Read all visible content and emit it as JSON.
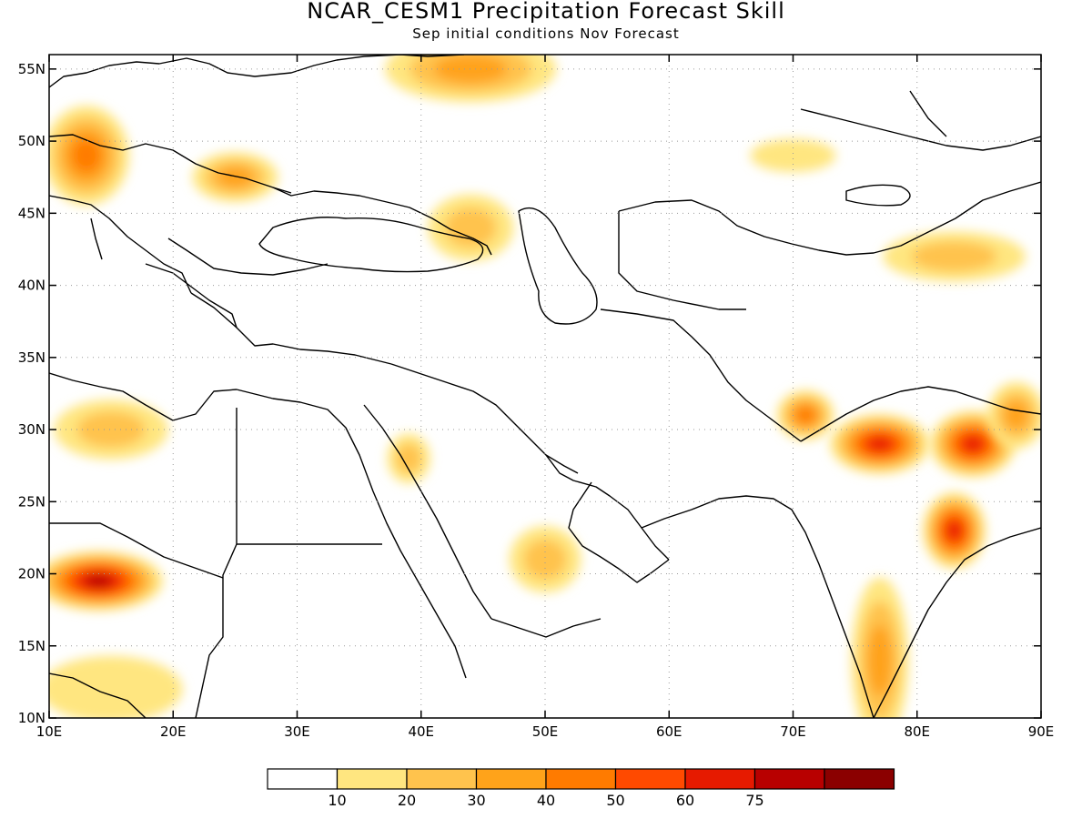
{
  "title": "NCAR_CESM1 Precipitation Forecast Skill",
  "subtitle": "Sep initial conditions   Nov Forecast",
  "axes": {
    "x_ticks": [
      {
        "value": 10,
        "label": "10E"
      },
      {
        "value": 20,
        "label": "20E"
      },
      {
        "value": 30,
        "label": "30E"
      },
      {
        "value": 40,
        "label": "40E"
      },
      {
        "value": 50,
        "label": "50E"
      },
      {
        "value": 60,
        "label": "60E"
      },
      {
        "value": 70,
        "label": "70E"
      },
      {
        "value": 80,
        "label": "80E"
      },
      {
        "value": 90,
        "label": "90E"
      }
    ],
    "y_ticks": [
      {
        "value": 10,
        "label": "10N"
      },
      {
        "value": 15,
        "label": "15N"
      },
      {
        "value": 20,
        "label": "20N"
      },
      {
        "value": 25,
        "label": "25N"
      },
      {
        "value": 30,
        "label": "30N"
      },
      {
        "value": 35,
        "label": "35N"
      },
      {
        "value": 40,
        "label": "40N"
      },
      {
        "value": 45,
        "label": "45N"
      },
      {
        "value": 50,
        "label": "50N"
      },
      {
        "value": 55,
        "label": "55N"
      }
    ],
    "lon_range": [
      10,
      90
    ],
    "lat_range": [
      10,
      56
    ],
    "grid": "dotted"
  },
  "colorbar": {
    "colors": [
      "#ffffff",
      "#ffe680",
      "#ffc34d",
      "#ffa31a",
      "#ff7b00",
      "#ff4a00",
      "#e61a00",
      "#b80000",
      "#8b0000"
    ],
    "labels": [
      "10",
      "20",
      "30",
      "40",
      "50",
      "60",
      "75"
    ]
  },
  "skill_regions": [
    {
      "lon": 77,
      "lat": 29,
      "rx": 3.5,
      "ry": 1.8,
      "level": 6
    },
    {
      "lon": 84.5,
      "lat": 29,
      "rx": 3,
      "ry": 2,
      "level": 6
    },
    {
      "lon": 83,
      "lat": 23,
      "rx": 2.2,
      "ry": 2.3,
      "level": 6
    },
    {
      "lon": 14,
      "lat": 19.5,
      "rx": 4.5,
      "ry": 1.8,
      "level": 7
    },
    {
      "lon": 71,
      "lat": 31,
      "rx": 2,
      "ry": 1.5,
      "level": 4
    },
    {
      "lon": 77,
      "lat": 14,
      "rx": 2,
      "ry": 5,
      "level": 3
    },
    {
      "lon": 13,
      "lat": 49,
      "rx": 3,
      "ry": 3,
      "level": 4
    },
    {
      "lon": 25,
      "lat": 47.5,
      "rx": 3,
      "ry": 1.5,
      "level": 3
    },
    {
      "lon": 44,
      "lat": 55,
      "rx": 6,
      "ry": 2,
      "level": 3
    },
    {
      "lon": 83,
      "lat": 42,
      "rx": 5,
      "ry": 1.5,
      "level": 2
    },
    {
      "lon": 15,
      "lat": 30,
      "rx": 4,
      "ry": 1.8,
      "level": 2
    },
    {
      "lon": 50,
      "lat": 21,
      "rx": 2.5,
      "ry": 2,
      "level": 2
    },
    {
      "lon": 39,
      "lat": 28,
      "rx": 1.5,
      "ry": 1.5,
      "level": 2
    },
    {
      "lon": 70,
      "lat": 49,
      "rx": 3,
      "ry": 1,
      "level": 1
    },
    {
      "lon": 44,
      "lat": 44,
      "rx": 3,
      "ry": 2,
      "level": 2
    },
    {
      "lon": 15,
      "lat": 12,
      "rx": 5,
      "ry": 2,
      "level": 1
    },
    {
      "lon": 88,
      "lat": 31,
      "rx": 2,
      "ry": 2,
      "level": 3
    }
  ]
}
